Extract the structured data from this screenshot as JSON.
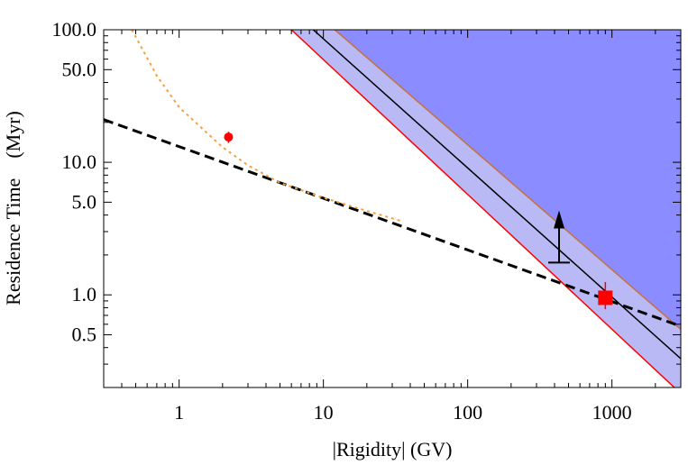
{
  "chart_data": {
    "type": "line",
    "title": "",
    "xlabel": "|Rigidity| (GV)",
    "ylabel": "Residence Time    (Myr)",
    "xscale": "log",
    "yscale": "log",
    "xlim": [
      0.3,
      3000
    ],
    "ylim": [
      0.2,
      100
    ],
    "x_ticks": [
      {
        "value": 1,
        "label": "1"
      },
      {
        "value": 10,
        "label": "10"
      },
      {
        "value": 100,
        "label": "100"
      },
      {
        "value": 1000,
        "label": "1000"
      }
    ],
    "y_ticks": [
      {
        "value": 100,
        "label": "100.0"
      },
      {
        "value": 50,
        "label": "50.0"
      },
      {
        "value": 10,
        "label": "10.0"
      },
      {
        "value": 5,
        "label": "5.0"
      },
      {
        "value": 1,
        "label": "1.0"
      },
      {
        "value": 0.5,
        "label": "0.5"
      }
    ],
    "series": [
      {
        "name": "upper-band-edge",
        "style": "solid",
        "color": "#c8703a",
        "points": [
          [
            12,
            100
          ],
          [
            3000,
            0.55
          ]
        ]
      },
      {
        "name": "central-line",
        "style": "solid",
        "color": "#000000",
        "points": [
          [
            8.5,
            100
          ],
          [
            3000,
            0.33
          ]
        ]
      },
      {
        "name": "lower-band-edge",
        "style": "solid",
        "color": "#ff0000",
        "points": [
          [
            6,
            100
          ],
          [
            3000,
            0.18
          ]
        ]
      },
      {
        "name": "dashed-power-law",
        "style": "dashed",
        "color": "#000000",
        "points": [
          [
            0.3,
            21
          ],
          [
            3000,
            0.58
          ]
        ]
      },
      {
        "name": "dotted-curve",
        "style": "dotted",
        "color": "#f5a040",
        "points": [
          [
            0.47,
            100
          ],
          [
            0.7,
            45
          ],
          [
            1,
            26
          ],
          [
            2,
            13
          ],
          [
            3,
            9.5
          ],
          [
            5,
            7
          ],
          [
            10,
            5.4
          ],
          [
            20,
            4.3
          ],
          [
            35,
            3.6
          ]
        ]
      }
    ],
    "regions": [
      {
        "name": "excluded-region",
        "color": "#8b8cff",
        "polygon": [
          [
            12,
            100
          ],
          [
            3000,
            100
          ],
          [
            3000,
            0.55
          ]
        ]
      },
      {
        "name": "uncertainty-band",
        "color": "#b8b9f5",
        "polygon": [
          [
            6,
            100
          ],
          [
            12,
            100
          ],
          [
            3000,
            0.55
          ],
          [
            3000,
            0.18
          ]
        ]
      }
    ],
    "markers": [
      {
        "name": "red-circle-point",
        "shape": "circle",
        "color": "#ff0000",
        "x": 2.2,
        "y": 15.5,
        "yerr": [
          14.0,
          17.0
        ]
      },
      {
        "name": "red-square-point",
        "shape": "square",
        "color": "#ff0000",
        "x": 900,
        "y": 0.95,
        "yerr": [
          0.78,
          1.25
        ]
      }
    ],
    "lower_limit": {
      "name": "lower-limit-arrow",
      "x": 430,
      "y_from": 1.75,
      "y_to": 4.2,
      "color": "#000000"
    }
  }
}
